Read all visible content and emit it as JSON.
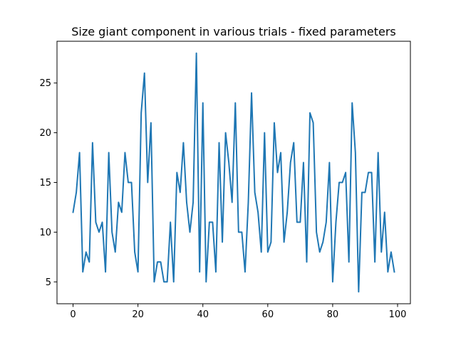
{
  "chart_data": {
    "type": "line",
    "title": "Size giant component in various trials - fixed parameters",
    "xlabel": "",
    "ylabel": "",
    "xlim": [
      -4.95,
      103.95
    ],
    "ylim": [
      2.8,
      29.2
    ],
    "x_ticks": [
      0,
      20,
      40,
      60,
      80,
      100
    ],
    "y_ticks": [
      5,
      10,
      15,
      20,
      25
    ],
    "grid": false,
    "series": [
      {
        "color": "#1f77b4",
        "x": [
          0,
          1,
          2,
          3,
          4,
          5,
          6,
          7,
          8,
          9,
          10,
          11,
          12,
          13,
          14,
          15,
          16,
          17,
          18,
          19,
          20,
          21,
          22,
          23,
          24,
          25,
          26,
          27,
          28,
          29,
          30,
          31,
          32,
          33,
          34,
          35,
          36,
          37,
          38,
          39,
          40,
          41,
          42,
          43,
          44,
          45,
          46,
          47,
          48,
          49,
          50,
          51,
          52,
          53,
          54,
          55,
          56,
          57,
          58,
          59,
          60,
          61,
          62,
          63,
          64,
          65,
          66,
          67,
          68,
          69,
          70,
          71,
          72,
          73,
          74,
          75,
          76,
          77,
          78,
          79,
          80,
          81,
          82,
          83,
          84,
          85,
          86,
          87,
          88,
          89,
          90,
          91,
          92,
          93,
          94,
          95,
          96,
          97,
          98,
          99
        ],
        "values": [
          12,
          14,
          18,
          6,
          8,
          7,
          19,
          11,
          10,
          11,
          6,
          18,
          10,
          8,
          13,
          12,
          18,
          15,
          15,
          8,
          6,
          22,
          26,
          15,
          21,
          5,
          7,
          7,
          5,
          5,
          11,
          5,
          16,
          14,
          19,
          13,
          10,
          13,
          28,
          6,
          23,
          5,
          11,
          11,
          6,
          19,
          9,
          20,
          17,
          13,
          23,
          10,
          10,
          6,
          13,
          24,
          14,
          12,
          8,
          20,
          8,
          9,
          21,
          16,
          18,
          9,
          12,
          17,
          19,
          11,
          11,
          17,
          7,
          22,
          21,
          10,
          8,
          9,
          11,
          17,
          5,
          11,
          15,
          15,
          16,
          7,
          23,
          18,
          4,
          14,
          14,
          16,
          16,
          7,
          18,
          8,
          12,
          6,
          8,
          6
        ]
      }
    ]
  }
}
